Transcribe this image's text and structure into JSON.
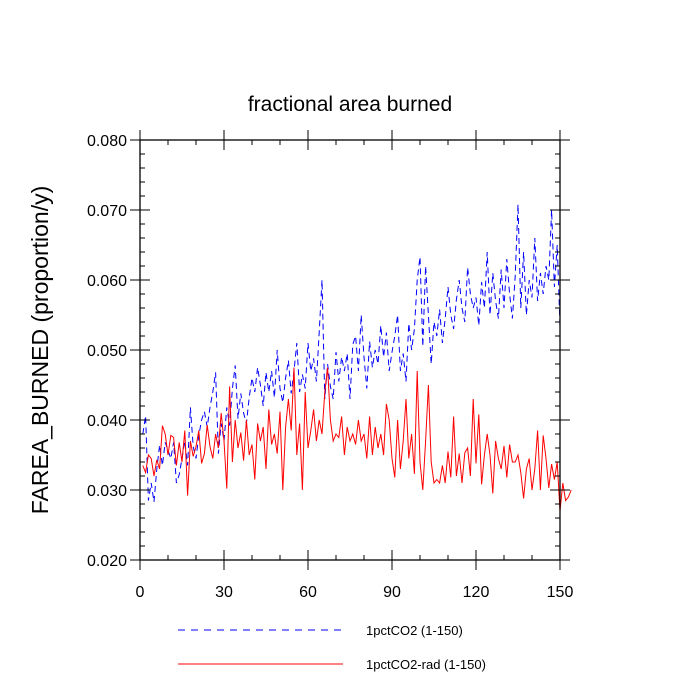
{
  "chart_data": {
    "type": "line",
    "title": "fractional area burned",
    "xlabel": "",
    "ylabel": "FAREA_BURNED  (proportion/y)",
    "xlim": [
      0,
      150
    ],
    "ylim": [
      0.02,
      0.08
    ],
    "x_ticks": [
      "0",
      "30",
      "60",
      "90",
      "120",
      "150"
    ],
    "y_ticks": [
      "0.020",
      "0.030",
      "0.040",
      "0.050",
      "0.060",
      "0.070",
      "0.080"
    ],
    "grid": false,
    "legend_position": "bottom",
    "series": [
      {
        "name": "1pctCO2 (1-150)",
        "color": "#0000ff",
        "style": "dashed",
        "values": [
          0.038,
          0.0406,
          0.0285,
          0.031,
          0.0283,
          0.033,
          0.0364,
          0.0335,
          0.0368,
          0.0357,
          0.0345,
          0.0368,
          0.031,
          0.0322,
          0.0345,
          0.037,
          0.0335,
          0.0418,
          0.0362,
          0.0345,
          0.0378,
          0.04,
          0.0412,
          0.039,
          0.0418,
          0.044,
          0.0468,
          0.0352,
          0.0395,
          0.037,
          0.0418,
          0.0392,
          0.0445,
          0.0478,
          0.0402,
          0.0438,
          0.041,
          0.0395,
          0.0432,
          0.046,
          0.044,
          0.0475,
          0.045,
          0.042,
          0.0468,
          0.044,
          0.047,
          0.0432,
          0.05,
          0.0445,
          0.0425,
          0.046,
          0.0485,
          0.0438,
          0.047,
          0.051,
          0.044,
          0.0465,
          0.0445,
          0.051,
          0.047,
          0.0488,
          0.0455,
          0.0525,
          0.06,
          0.043,
          0.048,
          0.0448,
          0.043,
          0.0497,
          0.0455,
          0.049,
          0.047,
          0.0495,
          0.043,
          0.0508,
          0.052,
          0.047,
          0.055,
          0.049,
          0.0445,
          0.0512,
          0.0475,
          0.05,
          0.048,
          0.0535,
          0.049,
          0.0525,
          0.047,
          0.0497,
          0.052,
          0.055,
          0.047,
          0.0495,
          0.0455,
          0.0538,
          0.05,
          0.053,
          0.06,
          0.0633,
          0.0505,
          0.062,
          0.055,
          0.048,
          0.054,
          0.052,
          0.0558,
          0.051,
          0.0545,
          0.059,
          0.055,
          0.053,
          0.0572,
          0.06,
          0.056,
          0.054,
          0.0618,
          0.058,
          0.056,
          0.0575,
          0.0535,
          0.0597,
          0.056,
          0.064,
          0.055,
          0.061,
          0.057,
          0.0545,
          0.0615,
          0.056,
          0.063,
          0.058,
          0.0545,
          0.0605,
          0.0708,
          0.056,
          0.064,
          0.055,
          0.06,
          0.0575,
          0.066,
          0.057,
          0.061,
          0.058,
          0.062,
          0.06,
          0.07,
          0.059,
          0.065,
          0.0535
        ]
      },
      {
        "name": "1pctCO2-rad (1-150)",
        "color": "#ff0000",
        "style": "solid",
        "values": [
          0.0335,
          0.0325,
          0.035,
          0.0345,
          0.032,
          0.0343,
          0.033,
          0.0392,
          0.038,
          0.035,
          0.0378,
          0.0375,
          0.0335,
          0.0368,
          0.034,
          0.0385,
          0.0292,
          0.037,
          0.0348,
          0.0362,
          0.0385,
          0.0338,
          0.0352,
          0.0393,
          0.0362,
          0.0345,
          0.038,
          0.036,
          0.041,
          0.037,
          0.0302,
          0.0448,
          0.034,
          0.04,
          0.036,
          0.0382,
          0.0342,
          0.04,
          0.035,
          0.0365,
          0.0315,
          0.0395,
          0.037,
          0.039,
          0.033,
          0.0415,
          0.0365,
          0.038,
          0.0352,
          0.0412,
          0.03,
          0.039,
          0.043,
          0.0385,
          0.0475,
          0.035,
          0.0395,
          0.03,
          0.044,
          0.036,
          0.0385,
          0.0415,
          0.037,
          0.04,
          0.038,
          0.044,
          0.0475,
          0.04,
          0.037,
          0.038,
          0.0375,
          0.0405,
          0.035,
          0.039,
          0.037,
          0.038,
          0.0365,
          0.04,
          0.037,
          0.038,
          0.0345,
          0.0405,
          0.035,
          0.039,
          0.036,
          0.038,
          0.035,
          0.0423,
          0.04,
          0.0345,
          0.0318,
          0.04,
          0.033,
          0.037,
          0.043,
          0.0345,
          0.038,
          0.0323,
          0.047,
          0.034,
          0.03,
          0.037,
          0.045,
          0.034,
          0.031,
          0.0315,
          0.031,
          0.0335,
          0.031,
          0.0355,
          0.0318,
          0.0405,
          0.032,
          0.0352,
          0.031,
          0.0353,
          0.036,
          0.032,
          0.043,
          0.0338,
          0.0408,
          0.0308,
          0.035,
          0.038,
          0.035,
          0.0295,
          0.037,
          0.0345,
          0.033,
          0.0363,
          0.0318,
          0.0365,
          0.034,
          0.034,
          0.035,
          0.0325,
          0.0288,
          0.033,
          0.0345,
          0.03,
          0.033,
          0.0385,
          0.03,
          0.0378,
          0.0345,
          0.0303,
          0.0337,
          0.0315,
          0.034,
          0.027,
          0.031,
          0.0285,
          0.029,
          0.03
        ]
      }
    ]
  }
}
